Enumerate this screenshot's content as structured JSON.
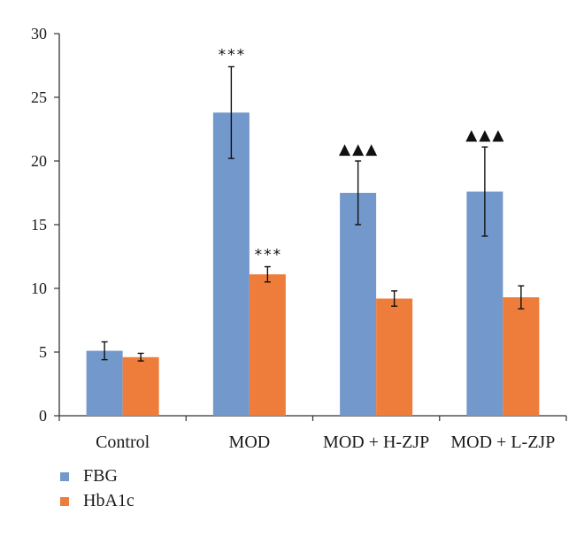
{
  "chart_data": {
    "type": "bar",
    "title": "",
    "xlabel": "",
    "ylabel": "",
    "categories": [
      "Control",
      "MOD",
      "MOD + H-ZJP",
      "MOD + L-ZJP"
    ],
    "ylim": [
      0,
      30
    ],
    "yticks": [
      "0",
      "5",
      "10",
      "15",
      "20",
      "25",
      "30"
    ],
    "grid": false,
    "legend_position": "bottom-left",
    "series": [
      {
        "name": "FBG",
        "color": "#7398CB",
        "values": [
          5.1,
          23.8,
          17.5,
          17.6
        ],
        "errors": [
          0.7,
          3.6,
          2.5,
          3.5
        ],
        "annotations": [
          "",
          "***",
          "▲▲▲",
          "▲▲▲"
        ]
      },
      {
        "name": "HbA1c",
        "color": "#EE7C3A",
        "values": [
          4.6,
          11.1,
          9.2,
          9.3
        ],
        "errors": [
          0.3,
          0.6,
          0.6,
          0.9
        ],
        "annotations": [
          "",
          "***",
          "",
          ""
        ]
      }
    ]
  }
}
